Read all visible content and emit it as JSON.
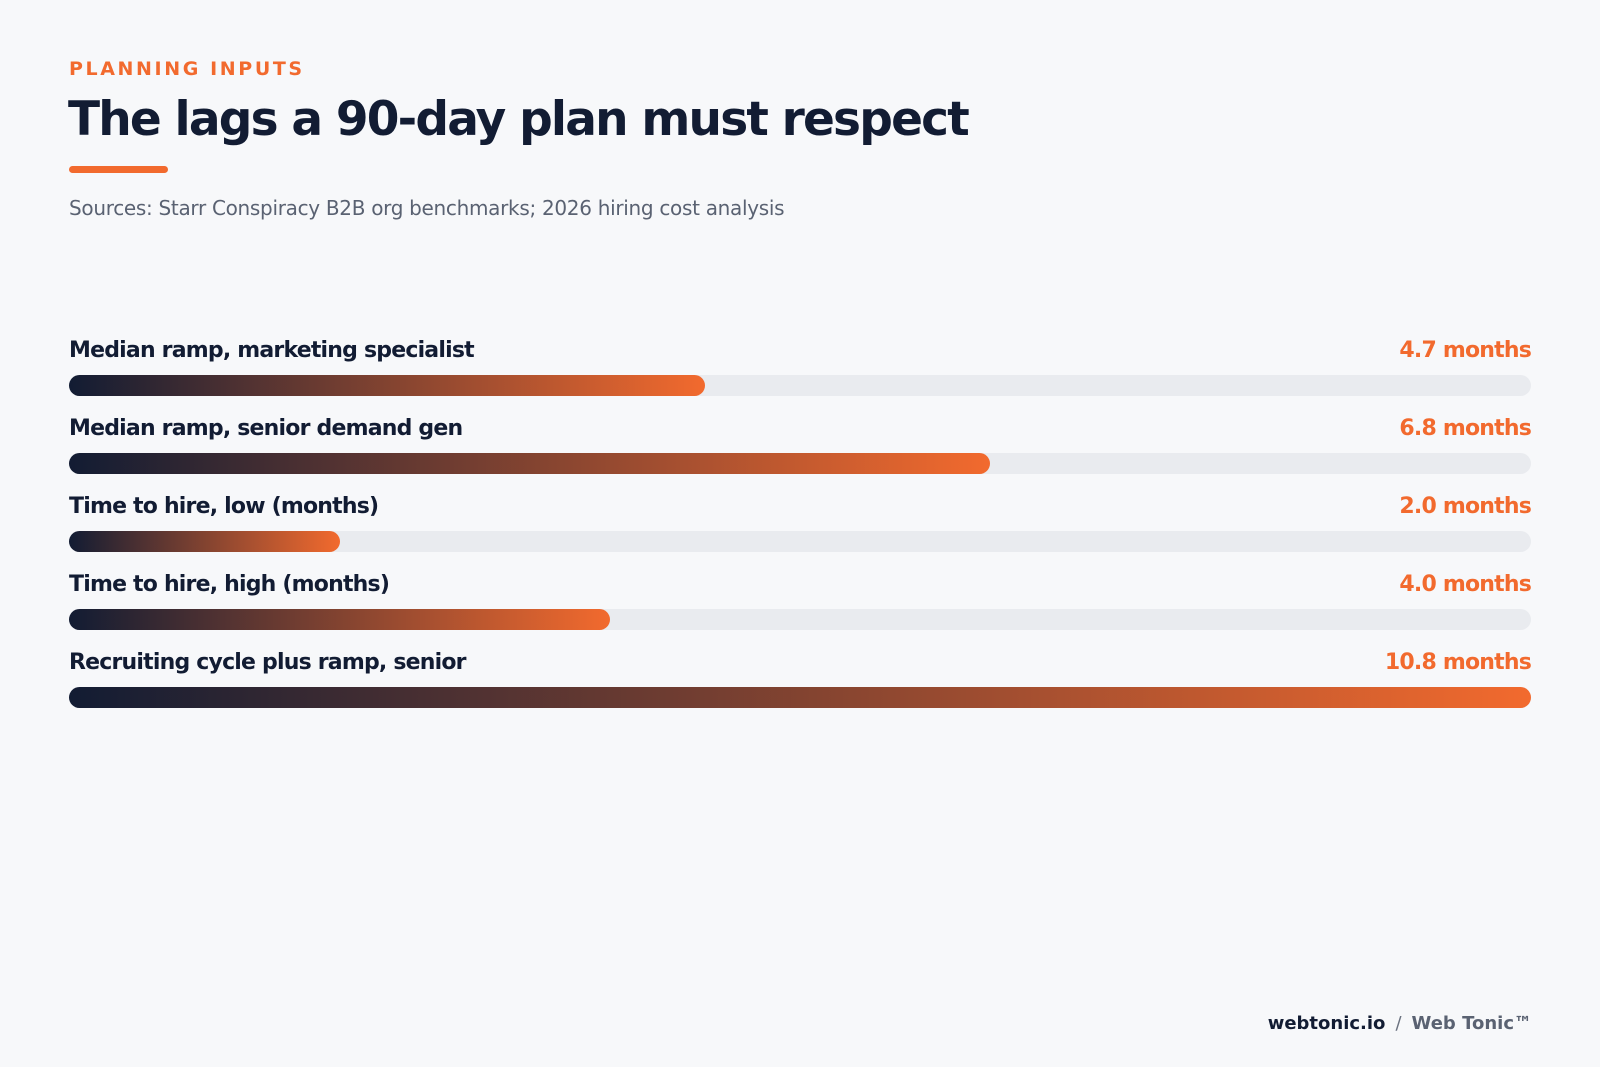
{
  "header": {
    "eyebrow": "PLANNING INPUTS",
    "title": "The lags a 90-day plan must respect",
    "sources": "Sources: Starr Conspiracy B2B org benchmarks; 2026 hiring cost analysis"
  },
  "chart_data": {
    "type": "bar",
    "orientation": "horizontal",
    "categories": [
      "Median ramp, marketing specialist",
      "Median ramp, senior demand gen",
      "Time to hire, low (months)",
      "Time to hire, high (months)",
      "Recruiting cycle plus ramp, senior"
    ],
    "values": [
      4.7,
      6.8,
      2.0,
      4.0,
      10.8
    ],
    "value_labels": [
      "4.7 months",
      "6.8 months",
      "2.0 months",
      "4.0 months",
      "10.8 months"
    ],
    "xlim": [
      0,
      10.8
    ],
    "grid": false,
    "colors": {
      "gradient_start": "#121c33",
      "gradient_end": "#f26a2e",
      "track": "#e9ebef",
      "value_text": "#f26a2e"
    }
  },
  "footer": {
    "site": "webtonic.io",
    "separator": "/",
    "brand": "Web Tonic™"
  },
  "colors": {
    "accent": "#f26a2e",
    "navy": "#121c33",
    "muted": "#5a6272",
    "background": "#f7f8fa"
  }
}
